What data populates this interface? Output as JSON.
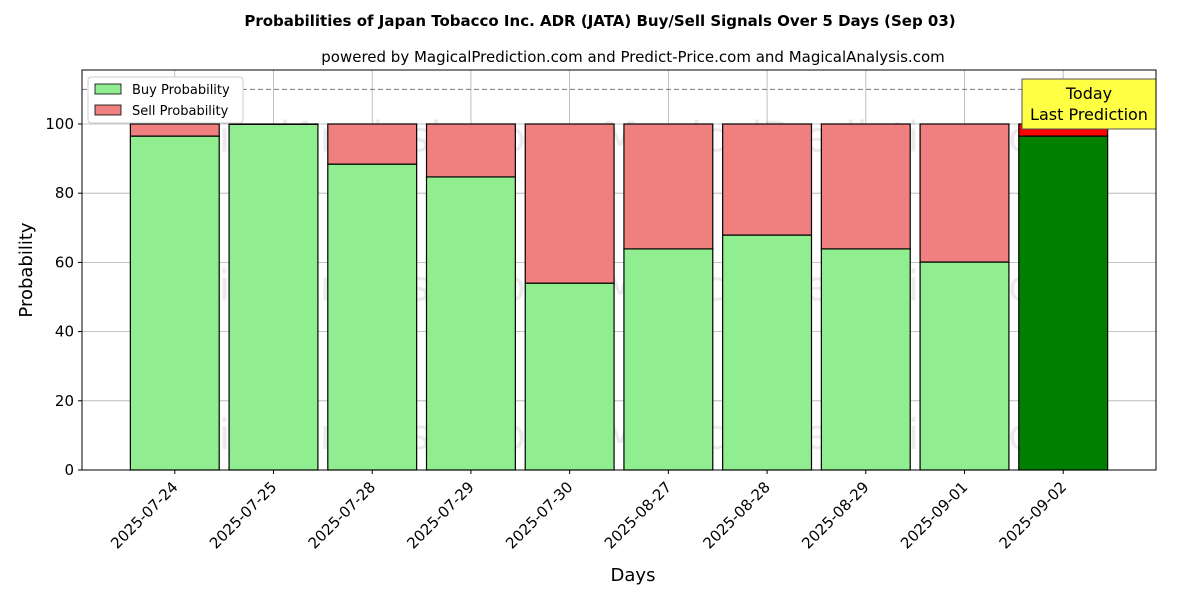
{
  "chart_data": {
    "type": "bar",
    "stacked": true,
    "title": "Probabilities of Japan Tobacco Inc. ADR (JATA) Buy/Sell Signals Over 5 Days (Sep 03)",
    "subtitle": "powered by MagicalPrediction.com and Predict-Price.com and MagicalAnalysis.com",
    "xlabel": "Days",
    "ylabel": "Probability",
    "ylim": [
      0,
      115.6
    ],
    "yticks": [
      0,
      20,
      40,
      60,
      80,
      100
    ],
    "grid": true,
    "legend_position": "top-left",
    "categories": [
      "2025-07-24",
      "2025-07-25",
      "2025-07-28",
      "2025-07-29",
      "2025-07-30",
      "2025-08-27",
      "2025-08-28",
      "2025-08-29",
      "2025-09-01",
      "2025-09-02"
    ],
    "series": [
      {
        "name": "Buy Probability",
        "color": "#90ee90",
        "values": [
          96.5,
          99.9,
          88.4,
          84.7,
          54.0,
          63.9,
          67.9,
          63.9,
          60.1,
          96.5
        ]
      },
      {
        "name": "Sell Probability",
        "color": "#f08080",
        "values": [
          3.5,
          0.1,
          11.6,
          15.3,
          46.0,
          36.1,
          32.1,
          36.1,
          39.9,
          3.5
        ]
      }
    ],
    "highlight": {
      "index": 9,
      "buy_color": "#008000",
      "sell_color": "#ff0000"
    },
    "reference_line": 110,
    "annotation": {
      "line1": "Today",
      "line2": "Last Prediction",
      "color": "#ffff44"
    },
    "watermarks": [
      "MagicalAnalysis.com",
      "MagicalPrediction.com"
    ]
  }
}
